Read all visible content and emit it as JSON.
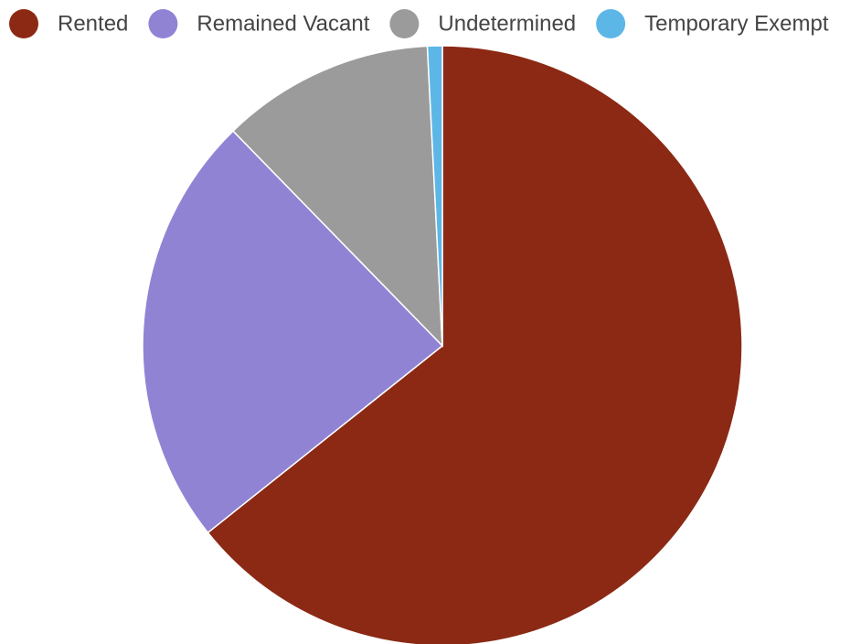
{
  "chart_data": {
    "type": "pie",
    "categories": [
      "Rented",
      "Remained Vacant",
      "Undetermined",
      "Temporary Exempt"
    ],
    "values": [
      64.3,
      23.4,
      11.5,
      0.8
    ],
    "colors": [
      "#8b2914",
      "#9183d4",
      "#9b9b9b",
      "#5db7e6"
    ],
    "legend": "top"
  }
}
